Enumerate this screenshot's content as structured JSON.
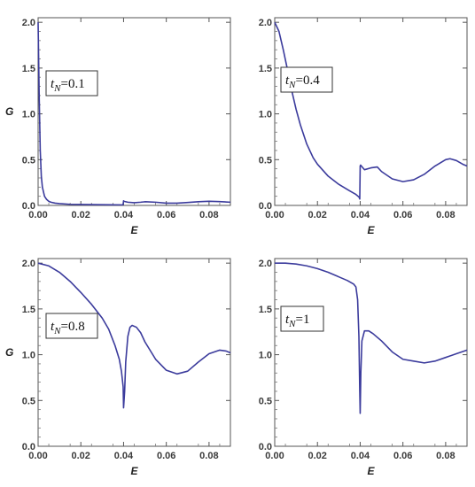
{
  "chart_data": [
    {
      "type": "line",
      "xlabel": "E",
      "ylabel": "G",
      "xlim": [
        0,
        0.09
      ],
      "ylim": [
        0,
        2.05
      ],
      "xticks": [
        "0.00",
        "0.02",
        "0.04",
        "0.06",
        "0.08"
      ],
      "yticks": [
        "0.0",
        "0.5",
        "1.0",
        "1.5",
        "2.0"
      ],
      "annotation": {
        "var": "t",
        "sub": "N",
        "value": "=0.1"
      },
      "color": "#3b3b9c",
      "series": [
        {
          "x": [
            0.0,
            0.0005,
            0.001,
            0.0015,
            0.002,
            0.003,
            0.004,
            0.005,
            0.006,
            0.008,
            0.01,
            0.015,
            0.02,
            0.03,
            0.0395,
            0.0398,
            0.04,
            0.0402,
            0.042,
            0.045,
            0.048,
            0.05,
            0.055,
            0.06,
            0.065,
            0.07,
            0.075,
            0.08,
            0.085,
            0.09
          ],
          "y": [
            2.0,
            1.2,
            0.6,
            0.32,
            0.2,
            0.1,
            0.065,
            0.045,
            0.035,
            0.025,
            0.02,
            0.012,
            0.01,
            0.008,
            0.006,
            0.01,
            0.05,
            0.045,
            0.035,
            0.03,
            0.035,
            0.04,
            0.035,
            0.025,
            0.025,
            0.032,
            0.04,
            0.045,
            0.042,
            0.035
          ]
        }
      ]
    },
    {
      "type": "line",
      "xlabel": "E",
      "ylabel": "",
      "xlim": [
        0,
        0.09
      ],
      "ylim": [
        0,
        2.05
      ],
      "xticks": [
        "0.00",
        "0.02",
        "0.04",
        "0.06",
        "0.08"
      ],
      "yticks": [
        "0.0",
        "0.5",
        "1.0",
        "1.5",
        "2.0"
      ],
      "annotation": {
        "var": "t",
        "sub": "N",
        "value": "=0.4"
      },
      "color": "#3b3b9c",
      "series": [
        {
          "x": [
            0.0,
            0.002,
            0.004,
            0.006,
            0.008,
            0.01,
            0.012,
            0.015,
            0.018,
            0.02,
            0.025,
            0.03,
            0.035,
            0.038,
            0.0395,
            0.0398,
            0.04,
            0.0402,
            0.042,
            0.045,
            0.048,
            0.05,
            0.055,
            0.06,
            0.065,
            0.07,
            0.075,
            0.08,
            0.082,
            0.085,
            0.088,
            0.09
          ],
          "y": [
            2.0,
            1.9,
            1.7,
            1.48,
            1.25,
            1.05,
            0.88,
            0.67,
            0.52,
            0.45,
            0.32,
            0.23,
            0.16,
            0.12,
            0.09,
            0.07,
            0.43,
            0.44,
            0.39,
            0.41,
            0.42,
            0.37,
            0.29,
            0.26,
            0.28,
            0.34,
            0.43,
            0.5,
            0.51,
            0.49,
            0.45,
            0.43
          ]
        }
      ]
    },
    {
      "type": "line",
      "xlabel": "E",
      "ylabel": "G",
      "xlim": [
        0,
        0.09
      ],
      "ylim": [
        0,
        2.05
      ],
      "xticks": [
        "0.00",
        "0.02",
        "0.04",
        "0.06",
        "0.08"
      ],
      "yticks": [
        "0.0",
        "0.5",
        "1.0",
        "1.5",
        "2.0"
      ],
      "annotation": {
        "var": "t",
        "sub": "N",
        "value": "=0.8"
      },
      "color": "#3b3b9c",
      "series": [
        {
          "x": [
            0.0,
            0.005,
            0.01,
            0.015,
            0.02,
            0.025,
            0.03,
            0.033,
            0.036,
            0.038,
            0.039,
            0.0398,
            0.04,
            0.0405,
            0.041,
            0.042,
            0.043,
            0.044,
            0.046,
            0.048,
            0.05,
            0.055,
            0.06,
            0.065,
            0.07,
            0.075,
            0.08,
            0.085,
            0.088,
            0.09
          ],
          "y": [
            2.0,
            1.97,
            1.9,
            1.8,
            1.68,
            1.55,
            1.4,
            1.28,
            1.1,
            0.95,
            0.82,
            0.65,
            0.42,
            0.6,
            0.92,
            1.2,
            1.3,
            1.32,
            1.3,
            1.24,
            1.14,
            0.95,
            0.83,
            0.79,
            0.82,
            0.92,
            1.01,
            1.05,
            1.04,
            1.02
          ]
        }
      ]
    },
    {
      "type": "line",
      "xlabel": "E",
      "ylabel": "",
      "xlim": [
        0,
        0.09
      ],
      "ylim": [
        0,
        2.05
      ],
      "xticks": [
        "0.00",
        "0.02",
        "0.04",
        "0.06",
        "0.08"
      ],
      "yticks": [
        "0.0",
        "0.5",
        "1.0",
        "1.5",
        "2.0"
      ],
      "annotation": {
        "var": "t",
        "sub": "N",
        "value": "=1"
      },
      "color": "#3b3b9c",
      "series": [
        {
          "x": [
            0.0,
            0.005,
            0.01,
            0.015,
            0.02,
            0.025,
            0.03,
            0.034,
            0.037,
            0.038,
            0.0388,
            0.0394,
            0.0398,
            0.04,
            0.0403,
            0.0408,
            0.042,
            0.044,
            0.046,
            0.05,
            0.055,
            0.06,
            0.065,
            0.07,
            0.075,
            0.08,
            0.085,
            0.09
          ],
          "y": [
            2.0,
            2.0,
            1.99,
            1.97,
            1.94,
            1.9,
            1.85,
            1.81,
            1.77,
            1.74,
            1.6,
            1.2,
            0.6,
            0.36,
            0.8,
            1.15,
            1.26,
            1.26,
            1.23,
            1.15,
            1.03,
            0.95,
            0.93,
            0.91,
            0.93,
            0.97,
            1.01,
            1.05
          ]
        }
      ]
    }
  ]
}
